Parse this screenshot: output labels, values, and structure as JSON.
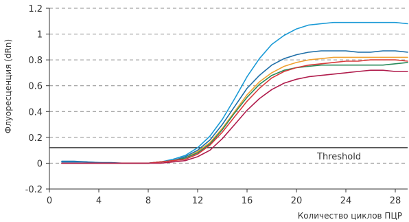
{
  "chart_data": {
    "type": "line",
    "title": "",
    "xlabel": "Количество циклов ПЦР",
    "ylabel": "Флуоресценция (dRn)",
    "xlim": [
      0,
      29
    ],
    "ylim": [
      -0.2,
      1.2
    ],
    "x_ticks": [
      0,
      4,
      8,
      12,
      16,
      20,
      24,
      28
    ],
    "x_tick_labels": [
      "0",
      "4",
      "8",
      "12",
      "16",
      "20",
      "24",
      "28"
    ],
    "y_ticks": [
      -0.2,
      0,
      0.2,
      0.4,
      0.6,
      0.8,
      1,
      1.2
    ],
    "y_tick_labels": [
      "-0.2",
      "0",
      "0.2",
      "0.4",
      "0.6",
      "0.8",
      "1",
      "1.2"
    ],
    "grid": "horizontal dashed",
    "legend": "none",
    "threshold": {
      "label": "Threshold",
      "value": 0.12,
      "color": "#1a1a1a"
    },
    "x": [
      1,
      2,
      3,
      4,
      5,
      6,
      7,
      8,
      9,
      10,
      11,
      12,
      13,
      14,
      15,
      16,
      17,
      18,
      19,
      20,
      21,
      22,
      23,
      24,
      25,
      26,
      27,
      28,
      29
    ],
    "series": [
      {
        "color": "#1a9ad6",
        "values": [
          0.01,
          0.01,
          0.01,
          0.005,
          0.0,
          0.0,
          0.0,
          0.0,
          0.01,
          0.03,
          0.06,
          0.12,
          0.21,
          0.34,
          0.5,
          0.67,
          0.81,
          0.92,
          0.99,
          1.04,
          1.07,
          1.08,
          1.09,
          1.09,
          1.09,
          1.09,
          1.09,
          1.09,
          1.08
        ]
      },
      {
        "color": "#1f6fa8",
        "values": [
          0.015,
          0.015,
          0.01,
          0.005,
          0.005,
          0.0,
          0.0,
          0.0,
          0.01,
          0.02,
          0.05,
          0.1,
          0.18,
          0.3,
          0.44,
          0.58,
          0.68,
          0.76,
          0.81,
          0.84,
          0.86,
          0.87,
          0.87,
          0.87,
          0.86,
          0.86,
          0.87,
          0.87,
          0.86
        ]
      },
      {
        "color": "#f0a030",
        "values": [
          0.0,
          0.0,
          0.0,
          0.0,
          0.0,
          0.0,
          0.0,
          0.0,
          0.01,
          0.02,
          0.04,
          0.09,
          0.16,
          0.27,
          0.4,
          0.53,
          0.63,
          0.7,
          0.75,
          0.78,
          0.8,
          0.81,
          0.82,
          0.82,
          0.82,
          0.82,
          0.82,
          0.82,
          0.82
        ]
      },
      {
        "color": "#2a8a5a",
        "values": [
          0.0,
          0.0,
          0.0,
          0.0,
          0.0,
          0.0,
          0.0,
          0.0,
          0.01,
          0.02,
          0.04,
          0.08,
          0.15,
          0.26,
          0.39,
          0.51,
          0.61,
          0.68,
          0.72,
          0.74,
          0.75,
          0.76,
          0.76,
          0.76,
          0.76,
          0.76,
          0.76,
          0.77,
          0.78
        ]
      },
      {
        "color": "#d83a3a",
        "values": [
          0.0,
          0.0,
          0.0,
          0.0,
          0.0,
          0.0,
          0.0,
          0.0,
          0.01,
          0.02,
          0.03,
          0.07,
          0.14,
          0.24,
          0.36,
          0.48,
          0.58,
          0.66,
          0.71,
          0.74,
          0.76,
          0.77,
          0.78,
          0.79,
          0.79,
          0.8,
          0.8,
          0.8,
          0.79
        ]
      },
      {
        "color": "#b01c4c",
        "values": [
          0.0,
          0.0,
          0.0,
          0.0,
          0.0,
          0.0,
          0.0,
          0.0,
          0.0,
          0.01,
          0.02,
          0.05,
          0.1,
          0.19,
          0.3,
          0.41,
          0.5,
          0.57,
          0.62,
          0.65,
          0.67,
          0.68,
          0.69,
          0.7,
          0.71,
          0.72,
          0.72,
          0.71,
          0.71
        ]
      }
    ]
  }
}
